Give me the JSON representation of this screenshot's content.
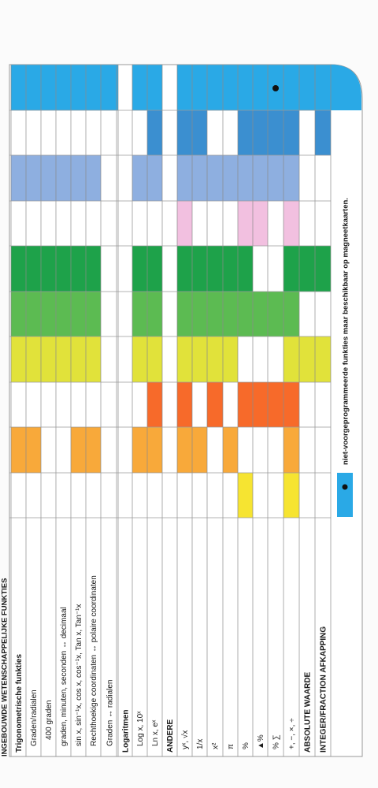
{
  "header": {
    "title": "INGEBOUWDE WETENSCHAPPELIJKE FUNKTIES"
  },
  "rows": [
    "Trigonometrische funkties",
    "Graden/radialen",
    "400 graden",
    "graden, minuten, seconden ↔ decimaal",
    "sin x, sin⁻¹x, cos x, cos⁻¹x, Tan x, Tan⁻¹x",
    "Rechthoekige coordinaten ↔ polaire coordinaten",
    "Graden ↔ radialen",
    "Logaritmen",
    "Log x, 10ˣ",
    "Ln x, eˣ",
    "ANDERE",
    "yˣ, √x",
    "1/x",
    "x²",
    "π",
    "%",
    "▲%",
    "% ∑",
    "+, −, ×, ÷",
    "ABSOLUTE WAARDE",
    "INTEGER/FRACTION  AFKAPPING"
  ],
  "legend": {
    "text": "niet-voorgeprogrammeerde funkties maar beschikbaar op magneetkaarten."
  }
}
